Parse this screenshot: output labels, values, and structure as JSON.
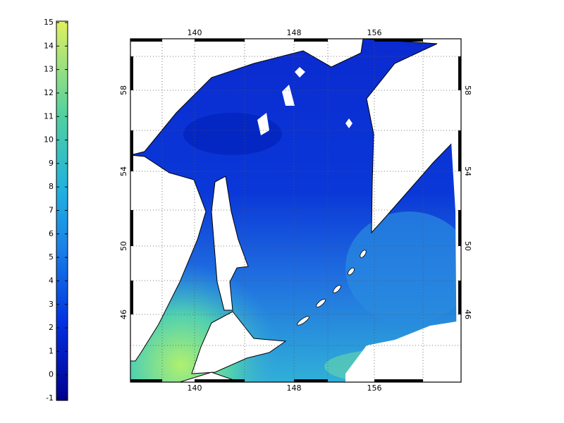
{
  "colorbar": {
    "ticks": [
      -1,
      0,
      1,
      2,
      3,
      4,
      5,
      6,
      7,
      8,
      9,
      10,
      11,
      12,
      13,
      14,
      15
    ]
  },
  "map": {
    "lon_ticks": [
      140,
      148,
      156
    ],
    "lat_ticks": [
      46,
      50,
      54,
      58
    ]
  }
}
